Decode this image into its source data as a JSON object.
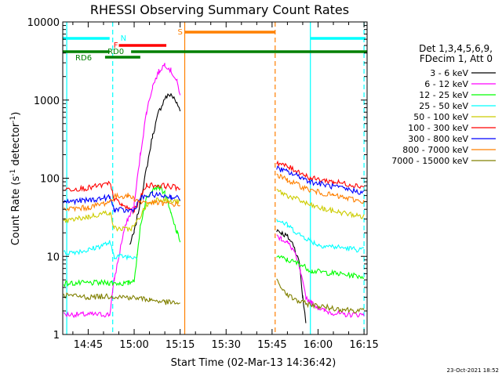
{
  "chart_data": {
    "type": "line",
    "title": "RHESSI Observing Summary Count Rates",
    "xlabel": "Start Time (02-Mar-13 14:36:42)",
    "ylabel_main": "Count Rate (s",
    "ylabel_sup": "-1",
    "ylabel_tail": " detector",
    "ylabel_end": ")",
    "y_scale": "log",
    "ylim": [
      1,
      10000
    ],
    "xlim": [
      "14:36:42",
      "16:16:00"
    ],
    "x_ticks": [
      "14:45",
      "15:00",
      "15:15",
      "15:30",
      "15:45",
      "16:00",
      "16:15"
    ],
    "y_ticks": [
      "1",
      "10",
      "100",
      "1000",
      "10000"
    ],
    "legend_header": [
      "Det 1,3,4,5,6,9,",
      "FDecim 1, Att 0"
    ],
    "timestamp": "23-Oct-2021 18:52",
    "colors": {
      "n": "#00ffff",
      "f": "#ff0000",
      "s": "#ff8000",
      "rd0": "#008000",
      "rd6": "#008000"
    },
    "flag_bars": [
      {
        "label": "N",
        "segments": [
          [
            "14:36:42",
            "14:52:00"
          ],
          [
            "15:57:30",
            "16:15:30"
          ]
        ]
      },
      {
        "label": "F",
        "segments": [
          [
            "14:55:00",
            "15:10:30"
          ]
        ]
      },
      {
        "label": "S",
        "segments": [
          [
            "15:16:30",
            "15:46:00"
          ]
        ]
      },
      {
        "label": "RD0",
        "segments": [
          [
            "14:36:42",
            "14:52:00"
          ],
          [
            "14:59:00",
            "16:16:00"
          ]
        ]
      },
      {
        "label": "RD6",
        "segments": [
          [
            "14:50:30",
            "15:02:00"
          ]
        ]
      }
    ],
    "vlines": [
      {
        "t": "14:38:00",
        "color": "#00ffff",
        "style": "solid"
      },
      {
        "t": "14:53:00",
        "color": "#00ffff",
        "style": "dashed"
      },
      {
        "t": "15:16:30",
        "color": "#ff8000",
        "style": "solid"
      },
      {
        "t": "15:46:00",
        "color": "#ff8000",
        "style": "dashed"
      },
      {
        "t": "15:57:30",
        "color": "#00ffff",
        "style": "solid"
      },
      {
        "t": "16:15:00",
        "color": "#00ffff",
        "style": "dashed"
      }
    ],
    "series": [
      {
        "name": "3 - 6 keV",
        "color": "#000000",
        "points": [
          [
            "14:58:30",
            14
          ],
          [
            "15:00:00",
            20
          ],
          [
            "15:02:00",
            50
          ],
          [
            "15:04:00",
            130
          ],
          [
            "15:06:00",
            350
          ],
          [
            "15:08:00",
            700
          ],
          [
            "15:10:00",
            1050
          ],
          [
            "15:12:00",
            1200
          ],
          [
            "15:14:00",
            900
          ],
          [
            "15:15:00",
            750
          ],
          null,
          [
            "15:46:30",
            22
          ],
          [
            "15:48:00",
            20
          ],
          [
            "15:50:00",
            18
          ],
          [
            "15:52:00",
            14
          ],
          [
            "15:54:00",
            8
          ],
          [
            "15:55:00",
            3
          ],
          [
            "15:56:00",
            1.5
          ]
        ]
      },
      {
        "name": "6 - 12 keV",
        "color": "#ff00ff",
        "points": [
          [
            "14:37:00",
            1.8
          ],
          [
            "14:46:00",
            1.8
          ],
          [
            "14:52:00",
            1.8
          ],
          [
            "14:53:30",
            5
          ],
          [
            "14:55:00",
            10
          ],
          [
            "14:56:30",
            20
          ],
          [
            "14:58:00",
            30
          ],
          [
            "15:00:00",
            45
          ],
          [
            "15:02:00",
            200
          ],
          [
            "15:04:00",
            700
          ],
          [
            "15:06:00",
            1500
          ],
          [
            "15:08:00",
            2300
          ],
          [
            "15:10:00",
            2900
          ],
          [
            "15:12:00",
            2400
          ],
          [
            "15:14:00",
            1700
          ],
          [
            "15:15:00",
            1200
          ],
          null,
          [
            "15:46:30",
            18
          ],
          [
            "15:48:00",
            17
          ],
          [
            "15:50:00",
            15
          ],
          [
            "15:52:00",
            12
          ],
          [
            "15:54:00",
            7
          ],
          [
            "15:56:00",
            3
          ],
          [
            "15:58:00",
            2.5
          ],
          [
            "16:02:00",
            2
          ],
          [
            "16:08:00",
            1.8
          ],
          [
            "16:15:00",
            1.8
          ]
        ]
      },
      {
        "name": "12 - 25 keV",
        "color": "#00ff00",
        "points": [
          [
            "14:37:00",
            4.5
          ],
          [
            "14:52:00",
            4.6
          ],
          [
            "14:55:00",
            4.5
          ],
          [
            "14:58:00",
            4.5
          ],
          [
            "15:00:00",
            5
          ],
          [
            "15:01:00",
            10
          ],
          [
            "15:02:00",
            25
          ],
          [
            "15:04:00",
            55
          ],
          [
            "15:06:00",
            75
          ],
          [
            "15:08:00",
            78
          ],
          [
            "15:10:00",
            65
          ],
          [
            "15:12:00",
            35
          ],
          [
            "15:14:00",
            20
          ],
          [
            "15:15:00",
            16
          ],
          null,
          [
            "15:46:30",
            10
          ],
          [
            "15:50:00",
            9
          ],
          [
            "15:54:00",
            8
          ],
          [
            "15:58:00",
            6.5
          ],
          [
            "16:15:00",
            5.5
          ]
        ]
      },
      {
        "name": "25 - 50 keV",
        "color": "#00ffff",
        "points": [
          [
            "14:37:00",
            11
          ],
          [
            "14:45:00",
            12
          ],
          [
            "14:52:00",
            15
          ],
          [
            "14:53:30",
            10
          ],
          [
            "14:55:00",
            10
          ],
          [
            "14:58:00",
            10
          ],
          [
            "15:00:00",
            10
          ],
          [
            "15:01:00",
            10
          ],
          null,
          [
            "15:46:30",
            30
          ],
          [
            "15:50:00",
            25
          ],
          [
            "15:54:00",
            19
          ],
          [
            "15:57:30",
            16
          ],
          [
            "16:00:00",
            14
          ],
          [
            "16:15:00",
            12
          ]
        ]
      },
      {
        "name": "50 - 100 keV",
        "color": "#cccc00",
        "points": [
          [
            "14:37:00",
            28
          ],
          [
            "14:45:00",
            32
          ],
          [
            "14:52:00",
            37
          ],
          [
            "14:53:30",
            23
          ],
          [
            "14:58:00",
            22
          ],
          [
            "15:00:00",
            24
          ],
          [
            "15:04:00",
            45
          ],
          [
            "15:08:00",
            55
          ],
          [
            "15:12:00",
            50
          ],
          [
            "15:15:00",
            50
          ],
          null,
          [
            "15:46:30",
            70
          ],
          [
            "15:50:00",
            60
          ],
          [
            "15:54:00",
            52
          ],
          [
            "15:57:30",
            45
          ],
          [
            "16:02:00",
            40
          ],
          [
            "16:15:00",
            32
          ]
        ]
      },
      {
        "name": "100 - 300 keV",
        "color": "#ff0000",
        "points": [
          [
            "14:37:00",
            72
          ],
          [
            "14:45:00",
            75
          ],
          [
            "14:52:00",
            85
          ],
          [
            "14:53:30",
            55
          ],
          [
            "14:56:00",
            45
          ],
          [
            "15:00:00",
            38
          ],
          [
            "15:02:00",
            55
          ],
          [
            "15:04:00",
            82
          ],
          [
            "15:10:00",
            80
          ],
          [
            "15:15:00",
            75
          ],
          null,
          [
            "15:46:30",
            160
          ],
          [
            "15:50:00",
            140
          ],
          [
            "15:54:00",
            120
          ],
          [
            "15:57:30",
            100
          ],
          [
            "16:05:00",
            90
          ],
          [
            "16:15:00",
            78
          ]
        ]
      },
      {
        "name": "300 - 800 keV",
        "color": "#0000ff",
        "points": [
          [
            "14:37:00",
            50
          ],
          [
            "14:45:00",
            52
          ],
          [
            "14:52:00",
            57
          ],
          [
            "14:53:30",
            40
          ],
          [
            "14:58:00",
            38
          ],
          [
            "15:00:00",
            40
          ],
          [
            "15:02:00",
            55
          ],
          [
            "15:06:00",
            62
          ],
          [
            "15:12:00",
            58
          ],
          [
            "15:15:00",
            55
          ],
          null,
          [
            "15:46:30",
            135
          ],
          [
            "15:50:00",
            120
          ],
          [
            "15:54:00",
            105
          ],
          [
            "15:57:30",
            90
          ],
          [
            "16:05:00",
            78
          ],
          [
            "16:15:00",
            65
          ]
        ]
      },
      {
        "name": "800 - 7000 keV",
        "color": "#ff8000",
        "points": [
          [
            "14:37:00",
            40
          ],
          [
            "14:45:00",
            42
          ],
          [
            "14:52:00",
            50
          ],
          [
            "14:53:30",
            58
          ],
          [
            "14:58:00",
            60
          ],
          [
            "15:00:00",
            55
          ],
          [
            "15:02:00",
            50
          ],
          [
            "15:08:00",
            48
          ],
          [
            "15:15:00",
            46
          ],
          null,
          [
            "15:46:30",
            110
          ],
          [
            "15:50:00",
            95
          ],
          [
            "15:54:00",
            80
          ],
          [
            "15:57:30",
            70
          ],
          [
            "16:05:00",
            60
          ],
          [
            "16:15:00",
            50
          ]
        ]
      },
      {
        "name": "7000 - 15000 keV",
        "color": "#808000",
        "points": [
          [
            "14:37:00",
            3.2
          ],
          [
            "14:45:00",
            3.0
          ],
          [
            "14:52:00",
            3.1
          ],
          [
            "14:58:00",
            3.0
          ],
          [
            "15:05:00",
            2.8
          ],
          [
            "15:10:00",
            2.6
          ],
          [
            "15:15:00",
            2.5
          ],
          null,
          [
            "15:46:30",
            4.8
          ],
          [
            "15:50:00",
            3.2
          ],
          [
            "15:54:00",
            2.6
          ],
          [
            "16:00:00",
            2.3
          ],
          [
            "16:08:00",
            2.1
          ],
          [
            "16:15:00",
            2.0
          ]
        ]
      }
    ]
  }
}
